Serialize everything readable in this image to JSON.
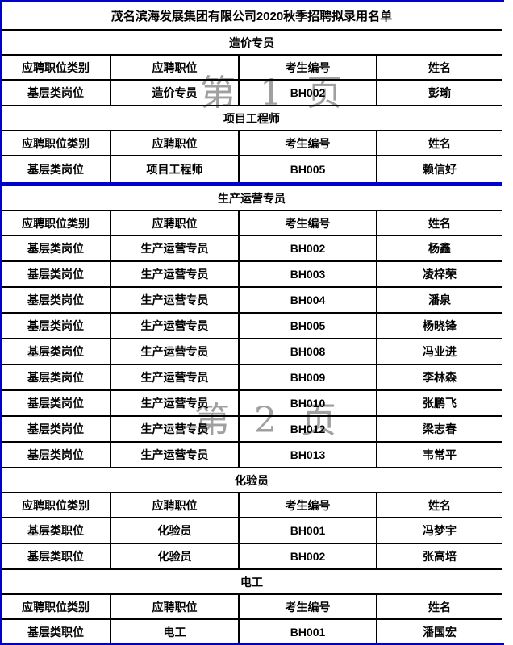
{
  "title": "茂名滨海发展集团有限公司2020秋季招聘拟录用名单",
  "columns": [
    "应聘职位类别",
    "应聘职位",
    "考生编号",
    "姓名"
  ],
  "sections": [
    {
      "title": "造价专员",
      "rows": [
        [
          "基层类岗位",
          "造价专员",
          "BH002",
          "彭瑜"
        ]
      ]
    },
    {
      "title": "项目工程师",
      "divider_after": true,
      "rows": [
        [
          "基层类岗位",
          "项目工程师",
          "BH005",
          "赖信好"
        ]
      ]
    },
    {
      "title": "生产运营专员",
      "rows": [
        [
          "基层类岗位",
          "生产运营专员",
          "BH002",
          "杨鑫"
        ],
        [
          "基层类岗位",
          "生产运营专员",
          "BH003",
          "凌梓荣"
        ],
        [
          "基层类岗位",
          "生产运营专员",
          "BH004",
          "潘泉"
        ],
        [
          "基层类岗位",
          "生产运营专员",
          "BH005",
          "杨晓锋"
        ],
        [
          "基层类岗位",
          "生产运营专员",
          "BH008",
          "冯业进"
        ],
        [
          "基层类岗位",
          "生产运营专员",
          "BH009",
          "李林森"
        ],
        [
          "基层类岗位",
          "生产运营专员",
          "BH010",
          "张鹏飞"
        ],
        [
          "基层类岗位",
          "生产运营专员",
          "BH012",
          "梁志春"
        ],
        [
          "基层类岗位",
          "生产运营专员",
          "BH013",
          "韦常平"
        ]
      ]
    },
    {
      "title": "化验员",
      "rows": [
        [
          "基层类职位",
          "化验员",
          "BH001",
          "冯梦宇"
        ],
        [
          "基层类职位",
          "化验员",
          "BH002",
          "张高培"
        ]
      ]
    },
    {
      "title": "电工",
      "rows": [
        [
          "基层类职位",
          "电工",
          "BH001",
          "潘国宏"
        ]
      ]
    }
  ],
  "watermarks": [
    {
      "text": "第 1 页",
      "chars": [
        "第",
        "1",
        "页"
      ]
    },
    {
      "text": "第 2 页",
      "chars": [
        "第",
        "2",
        "页"
      ]
    }
  ],
  "colors": {
    "accent_blue": "#0000cc",
    "grid_black": "#000000",
    "watermark_gray": "#a0a0a0",
    "text": "#000000",
    "background": "#ffffff"
  }
}
